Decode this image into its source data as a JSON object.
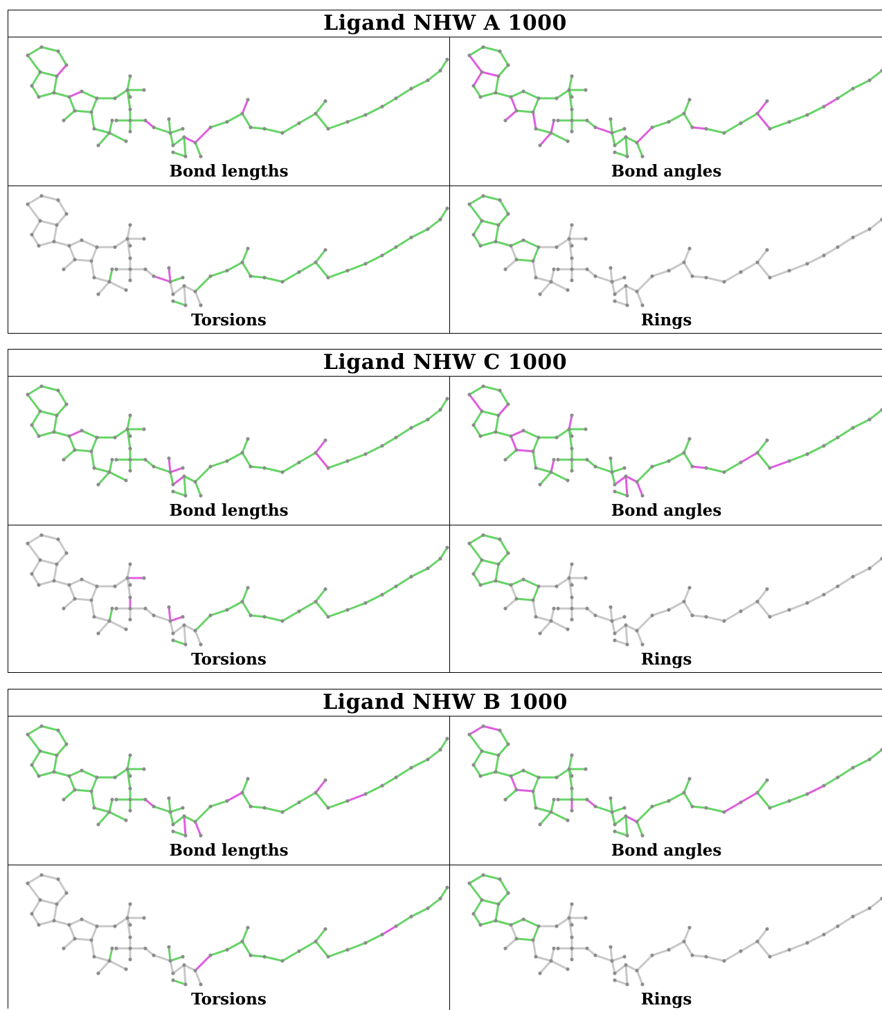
{
  "colors": {
    "green": "#66d466",
    "magenta": "#e05ce0",
    "gray": "#c8c8c8",
    "atom": "#8c8c8c"
  },
  "blocks": [
    {
      "title": "Ligand NHW A 1000",
      "panels": [
        {
          "label": "Bond lengths",
          "coloring": "lengths_a"
        },
        {
          "label": "Bond angles",
          "coloring": "angles_a"
        },
        {
          "label": "Torsions",
          "coloring": "torsions_a"
        },
        {
          "label": "Rings",
          "coloring": "rings"
        }
      ]
    },
    {
      "title": "Ligand NHW C 1000",
      "panels": [
        {
          "label": "Bond lengths",
          "coloring": "lengths_c"
        },
        {
          "label": "Bond angles",
          "coloring": "angles_c"
        },
        {
          "label": "Torsions",
          "coloring": "torsions_c"
        },
        {
          "label": "Rings",
          "coloring": "rings"
        }
      ]
    },
    {
      "title": "Ligand NHW B 1000",
      "panels": [
        {
          "label": "Bond lengths",
          "coloring": "lengths_b"
        },
        {
          "label": "Bond angles",
          "coloring": "angles_b"
        },
        {
          "label": "Torsions",
          "coloring": "torsions_b"
        },
        {
          "label": "Rings",
          "coloring": "rings"
        }
      ]
    }
  ]
}
